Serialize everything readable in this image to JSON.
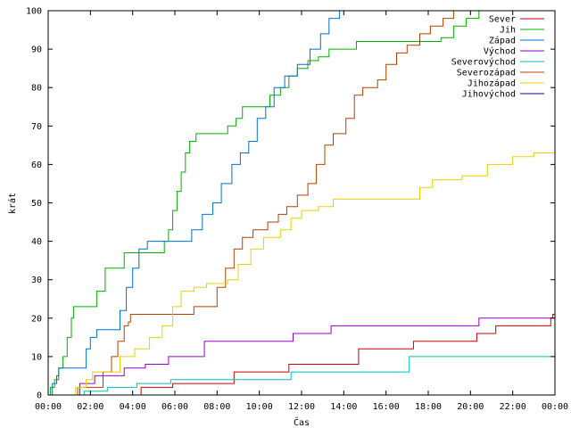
{
  "chart_data": {
    "type": "line",
    "title": "",
    "xlabel": "Čas",
    "ylabel": "krát",
    "ylim": [
      0,
      100
    ],
    "yticks": [
      0,
      10,
      20,
      30,
      40,
      50,
      60,
      70,
      80,
      90,
      100
    ],
    "xlim": [
      0,
      24
    ],
    "xticks": [
      {
        "value": 0,
        "label": "00:00"
      },
      {
        "value": 2,
        "label": "02:00"
      },
      {
        "value": 4,
        "label": "04:00"
      },
      {
        "value": 6,
        "label": "06:00"
      },
      {
        "value": 8,
        "label": "08:00"
      },
      {
        "value": 10,
        "label": "10:00"
      },
      {
        "value": 12,
        "label": "12:00"
      },
      {
        "value": 14,
        "label": "14:00"
      },
      {
        "value": 16,
        "label": "16:00"
      },
      {
        "value": 18,
        "label": "18:00"
      },
      {
        "value": 20,
        "label": "20:00"
      },
      {
        "value": 22,
        "label": "22:00"
      },
      {
        "value": 24,
        "label": "00:00"
      }
    ],
    "grid": false,
    "legend_position": "top-right",
    "step": true,
    "series": [
      {
        "name": "Sever",
        "color": "#cc0000",
        "points": [
          [
            4.3,
            0
          ],
          [
            4.4,
            2
          ],
          [
            5.8,
            2
          ],
          [
            5.9,
            3
          ],
          [
            8.7,
            3
          ],
          [
            8.8,
            6
          ],
          [
            11.3,
            6
          ],
          [
            11.4,
            8
          ],
          [
            14.6,
            8
          ],
          [
            14.7,
            12
          ],
          [
            17.2,
            12
          ],
          [
            17.3,
            14
          ],
          [
            20.2,
            14
          ],
          [
            20.3,
            16
          ],
          [
            21.1,
            16
          ],
          [
            21.2,
            18
          ],
          [
            23.7,
            18
          ],
          [
            23.8,
            20
          ],
          [
            23.9,
            21
          ],
          [
            24,
            23
          ]
        ]
      },
      {
        "name": "Jih",
        "color": "#00b000",
        "points": [
          [
            0,
            0
          ],
          [
            0.1,
            2
          ],
          [
            0.3,
            4
          ],
          [
            0.5,
            7
          ],
          [
            0.7,
            10
          ],
          [
            0.9,
            15
          ],
          [
            1.1,
            20
          ],
          [
            1.2,
            23
          ],
          [
            2.1,
            23
          ],
          [
            2.3,
            27
          ],
          [
            2.7,
            33
          ],
          [
            3.4,
            33
          ],
          [
            3.6,
            37
          ],
          [
            5.3,
            37
          ],
          [
            5.5,
            40
          ],
          [
            5.7,
            43
          ],
          [
            5.9,
            48
          ],
          [
            6.1,
            53
          ],
          [
            6.3,
            58
          ],
          [
            6.5,
            63
          ],
          [
            6.7,
            66
          ],
          [
            7.0,
            68
          ],
          [
            8.3,
            68
          ],
          [
            8.5,
            70
          ],
          [
            8.9,
            72
          ],
          [
            9.2,
            75
          ],
          [
            10.2,
            75
          ],
          [
            10.5,
            78
          ],
          [
            11.0,
            80
          ],
          [
            11.4,
            83
          ],
          [
            11.8,
            85
          ],
          [
            12.3,
            87
          ],
          [
            12.8,
            88
          ],
          [
            13.3,
            90
          ],
          [
            14.1,
            90
          ],
          [
            14.6,
            92
          ],
          [
            18.2,
            92
          ],
          [
            18.6,
            93
          ],
          [
            19.2,
            96
          ],
          [
            19.8,
            98
          ],
          [
            20.4,
            100
          ]
        ]
      },
      {
        "name": "Západ",
        "color": "#0070d0",
        "points": [
          [
            0,
            0
          ],
          [
            0.2,
            3
          ],
          [
            0.4,
            5
          ],
          [
            0.5,
            7
          ],
          [
            1.7,
            7
          ],
          [
            1.8,
            12
          ],
          [
            2.0,
            15
          ],
          [
            2.3,
            17
          ],
          [
            3.1,
            17
          ],
          [
            3.4,
            22
          ],
          [
            3.7,
            28
          ],
          [
            4.0,
            33
          ],
          [
            4.3,
            38
          ],
          [
            4.7,
            40
          ],
          [
            6.4,
            40
          ],
          [
            6.8,
            43
          ],
          [
            7.3,
            47
          ],
          [
            7.8,
            50
          ],
          [
            8.2,
            55
          ],
          [
            8.7,
            60
          ],
          [
            9.1,
            63
          ],
          [
            9.5,
            66
          ],
          [
            9.9,
            72
          ],
          [
            10.3,
            75
          ],
          [
            10.7,
            80
          ],
          [
            11.2,
            83
          ],
          [
            11.8,
            86
          ],
          [
            12.4,
            90
          ],
          [
            12.9,
            94
          ],
          [
            13.3,
            98
          ],
          [
            13.8,
            100
          ]
        ]
      },
      {
        "name": "Východ",
        "color": "#9900cc",
        "points": [
          [
            1.4,
            0
          ],
          [
            1.5,
            3
          ],
          [
            2.1,
            3
          ],
          [
            2.2,
            5
          ],
          [
            3.4,
            5
          ],
          [
            3.6,
            7
          ],
          [
            4.4,
            7
          ],
          [
            4.6,
            8
          ],
          [
            5.5,
            8
          ],
          [
            5.7,
            10
          ],
          [
            7.2,
            10
          ],
          [
            7.4,
            14
          ],
          [
            11.4,
            14
          ],
          [
            11.6,
            16
          ],
          [
            13.2,
            16
          ],
          [
            13.4,
            18
          ],
          [
            20.2,
            18
          ],
          [
            20.4,
            20
          ],
          [
            24,
            20
          ]
        ]
      },
      {
        "name": "Severovýchod",
        "color": "#00c0c0",
        "points": [
          [
            1.6,
            0
          ],
          [
            1.7,
            1
          ],
          [
            2.7,
            1
          ],
          [
            2.8,
            2
          ],
          [
            4.0,
            2
          ],
          [
            4.2,
            3
          ],
          [
            5.6,
            3
          ],
          [
            5.8,
            4
          ],
          [
            11.3,
            4
          ],
          [
            11.5,
            6
          ],
          [
            16.9,
            6
          ],
          [
            17.1,
            10
          ],
          [
            24,
            10
          ]
        ]
      },
      {
        "name": "Severozápad",
        "color": "#b04000",
        "points": [
          [
            1.3,
            0
          ],
          [
            1.4,
            2
          ],
          [
            2.4,
            2
          ],
          [
            2.6,
            6
          ],
          [
            3.0,
            10
          ],
          [
            3.3,
            14
          ],
          [
            3.6,
            18
          ],
          [
            3.8,
            19
          ],
          [
            3.9,
            21
          ],
          [
            6.5,
            21
          ],
          [
            6.9,
            23
          ],
          [
            7.6,
            23
          ],
          [
            8.0,
            28
          ],
          [
            8.4,
            33
          ],
          [
            8.8,
            38
          ],
          [
            9.2,
            41
          ],
          [
            9.7,
            43
          ],
          [
            10.4,
            45
          ],
          [
            10.9,
            47
          ],
          [
            11.3,
            49
          ],
          [
            11.8,
            52
          ],
          [
            12.3,
            55
          ],
          [
            12.7,
            60
          ],
          [
            13.1,
            65
          ],
          [
            13.5,
            68
          ],
          [
            14.1,
            72
          ],
          [
            14.5,
            78
          ],
          [
            14.9,
            80
          ],
          [
            15.6,
            82
          ],
          [
            16.0,
            86
          ],
          [
            16.5,
            89
          ],
          [
            17.0,
            91
          ],
          [
            17.6,
            94
          ],
          [
            18.1,
            96
          ],
          [
            18.7,
            98
          ],
          [
            19.2,
            100
          ]
        ]
      },
      {
        "name": "Jihozápad",
        "color": "#e8d000",
        "points": [
          [
            1.2,
            0
          ],
          [
            1.3,
            2
          ],
          [
            1.8,
            4
          ],
          [
            2.1,
            6
          ],
          [
            3.1,
            6
          ],
          [
            3.4,
            10
          ],
          [
            4.1,
            12
          ],
          [
            4.8,
            15
          ],
          [
            5.4,
            18
          ],
          [
            5.9,
            23
          ],
          [
            6.3,
            27
          ],
          [
            6.9,
            28
          ],
          [
            7.5,
            29
          ],
          [
            8.5,
            30
          ],
          [
            9.0,
            34
          ],
          [
            9.6,
            38
          ],
          [
            10.2,
            41
          ],
          [
            11.0,
            43
          ],
          [
            11.5,
            46
          ],
          [
            12.0,
            48
          ],
          [
            12.8,
            49
          ],
          [
            13.5,
            51
          ],
          [
            17.2,
            51
          ],
          [
            17.6,
            54
          ],
          [
            18.2,
            56
          ],
          [
            19.6,
            57
          ],
          [
            20.8,
            60
          ],
          [
            22.0,
            62
          ],
          [
            23.0,
            63
          ],
          [
            24,
            63
          ]
        ]
      },
      {
        "name": "Jihovýchod",
        "color": "#1a0099",
        "points": []
      }
    ]
  }
}
